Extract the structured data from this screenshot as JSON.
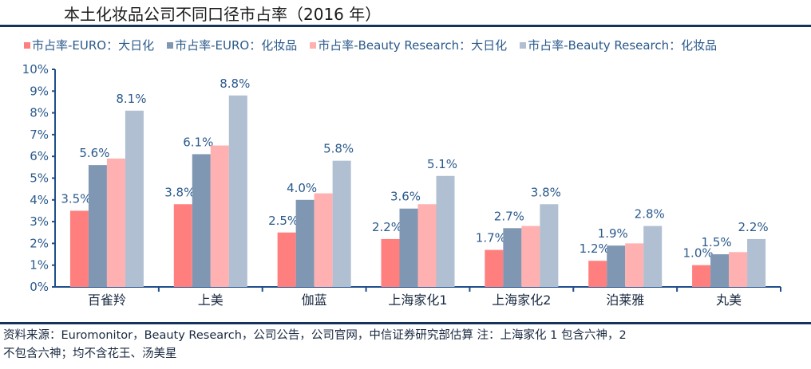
{
  "header": {
    "title": "本土化妆品公司不同口径市占率（2016 年）"
  },
  "footer": {
    "source_line1": "资料来源：Euromonitor，Beauty Research，公司公告，公司官网，中信证券研究部估算   注：上海家化 1 包含六神，2",
    "source_line2": "不包含六神；均不含花王、汤美星"
  },
  "colors": {
    "rule": "#15335a",
    "axis": "#1f4e8c",
    "label_text": "#2b5a8c"
  },
  "chart_data": {
    "type": "bar",
    "title": "本土化妆品公司不同口径市占率（2016 年）",
    "xlabel": "",
    "ylabel": "",
    "ylim": [
      0,
      10
    ],
    "y_unit": "%",
    "y_ticks": [
      "0%",
      "1%",
      "2%",
      "3%",
      "4%",
      "5%",
      "6%",
      "7%",
      "8%",
      "9%",
      "10%"
    ],
    "grid": false,
    "legend_position": "top",
    "categories": [
      "百雀羚",
      "上美",
      "伽蓝",
      "上海家化1",
      "上海家化2",
      "泊莱雅",
      "丸美"
    ],
    "series": [
      {
        "name": "市占率-EURO：大日化",
        "color": "#ff7f7f",
        "values": [
          3.5,
          3.8,
          2.5,
          2.2,
          1.7,
          1.2,
          1.0
        ],
        "labels": [
          "3.5%",
          "3.8%",
          "2.5%",
          "2.2%",
          "1.7%",
          "1.2%",
          "1.0%"
        ]
      },
      {
        "name": "市占率-EURO：化妆品",
        "color": "#7f97b2",
        "values": [
          5.6,
          6.1,
          4.0,
          3.6,
          2.7,
          1.9,
          1.5
        ],
        "labels": [
          "5.6%",
          "6.1%",
          "4.0%",
          "3.6%",
          "2.7%",
          "1.9%",
          "1.5%"
        ]
      },
      {
        "name": "市占率-Beauty Research：大日化",
        "color": "#ffb0b0",
        "values": [
          5.9,
          6.5,
          4.3,
          3.8,
          2.8,
          2.0,
          1.6
        ],
        "labels": null
      },
      {
        "name": "市占率-Beauty Research：化妆品",
        "color": "#b0bfd1",
        "values": [
          8.1,
          8.8,
          5.8,
          5.1,
          3.8,
          2.8,
          2.2
        ],
        "labels": [
          "8.1%",
          "8.8%",
          "5.8%",
          "5.1%",
          "3.8%",
          "2.8%",
          "2.2%"
        ]
      }
    ]
  }
}
